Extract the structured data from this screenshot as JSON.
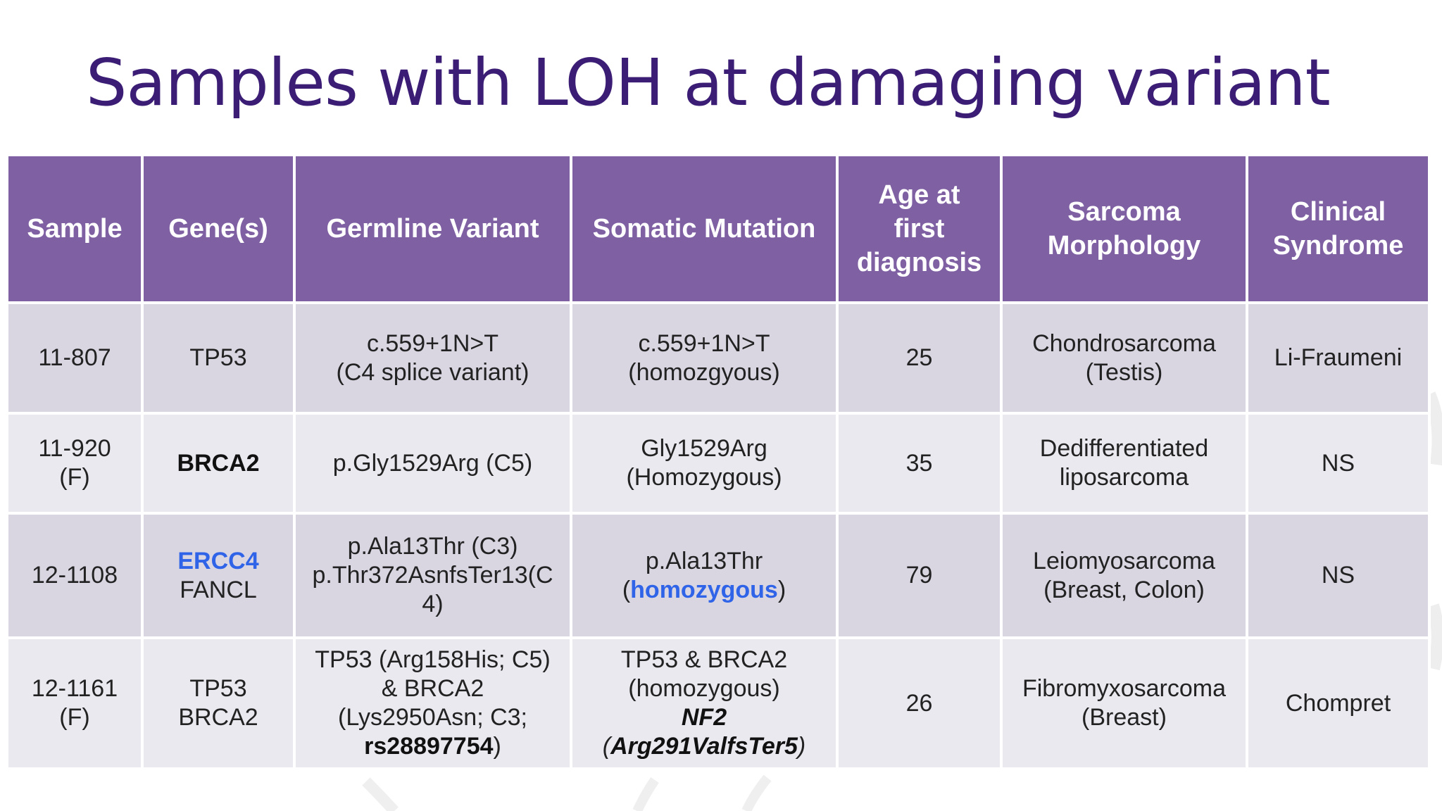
{
  "slide": {
    "title": "Samples with LOH at damaging variant"
  },
  "table": {
    "headers": [
      [
        "Sample"
      ],
      [
        "Gene(s)"
      ],
      [
        "Germline Variant"
      ],
      [
        "Somatic Mutation"
      ],
      [
        "Age at",
        "first",
        "diagnosis"
      ],
      [
        "Sarcoma",
        "Morphology"
      ],
      [
        "Clinical",
        "Syndrome"
      ]
    ],
    "rows": [
      {
        "sample": [
          "11-807"
        ],
        "genes": [
          "TP53"
        ],
        "germline": [
          "c.559+1N>T",
          "(C4 splice variant)"
        ],
        "somatic": [
          "c.559+1N>T",
          "(homozgyous)"
        ],
        "age": "25",
        "morphology": [
          "Chondrosarcoma",
          "(Testis)"
        ],
        "syndrome": "Li-Fraumeni"
      },
      {
        "sample": [
          "11-920",
          "(F)"
        ],
        "genes": [
          "BRCA2"
        ],
        "germline": [
          "p.Gly1529Arg (C5)"
        ],
        "somatic": [
          "Gly1529Arg",
          "(Homozygous)"
        ],
        "age": "35",
        "morphology": [
          "Dedifferentiated",
          "liposarcoma"
        ],
        "syndrome": "NS"
      },
      {
        "sample": [
          "12-1108"
        ],
        "genes": [
          "ERCC4",
          "FANCL"
        ],
        "germline": [
          "p.Ala13Thr (C3)",
          "p.Thr372AsnfsTer13(C",
          "4)"
        ],
        "somatic": [
          "p.Ala13Thr",
          "(",
          "homozygous",
          ")"
        ],
        "age": "79",
        "morphology": [
          "Leiomyosarcoma",
          "(Breast, Colon)"
        ],
        "syndrome": "NS"
      },
      {
        "sample": [
          "12-1161",
          "(F)"
        ],
        "genes": [
          "TP53",
          "BRCA2"
        ],
        "germline": [
          "TP53 (Arg158His; C5)",
          "& BRCA2",
          "(Lys2950Asn; C3;",
          "rs28897754",
          ")"
        ],
        "somatic": [
          "TP53 & BRCA2",
          "(homozygous)",
          "NF2",
          "(",
          "Arg291ValfsTer5",
          ")"
        ],
        "age": "26",
        "morphology": [
          "Fibromyxosarcoma",
          "(Breast)"
        ],
        "syndrome": "Chompret"
      }
    ]
  },
  "colors": {
    "title": "#3b1d75",
    "header_bg": "#7e60a3",
    "row_dark": "#d9d6e2",
    "row_light": "#ebe9f0",
    "highlight_blue": "#2f64e8"
  }
}
